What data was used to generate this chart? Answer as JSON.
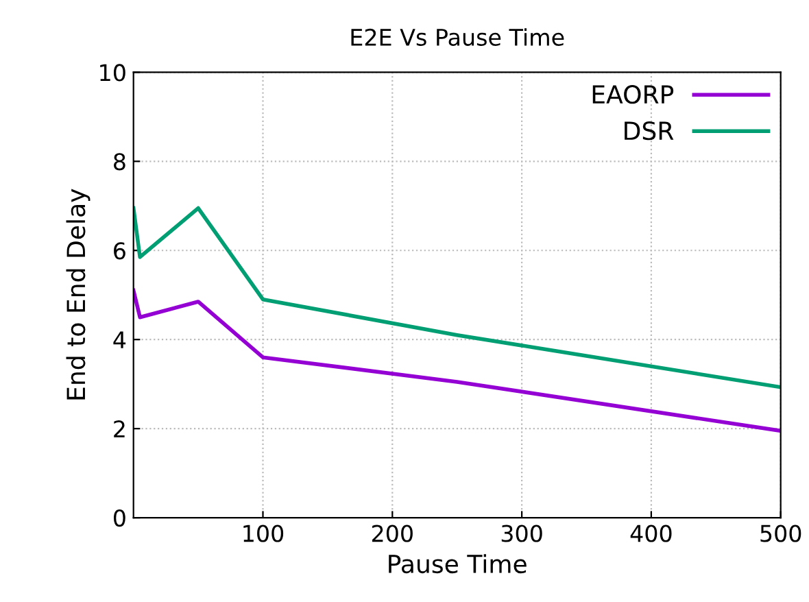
{
  "chart_data": {
    "type": "line",
    "title": "E2E Vs Pause Time",
    "xlabel": "Pause Time",
    "ylabel": "End to End Delay",
    "x": [
      0,
      5,
      50,
      100,
      250,
      500
    ],
    "series": [
      {
        "name": "EAORP",
        "color": "#9400d3",
        "values": [
          5.1,
          4.5,
          4.85,
          3.6,
          3.05,
          1.95
        ]
      },
      {
        "name": "DSR",
        "color": "#009e73",
        "values": [
          6.95,
          5.85,
          6.95,
          4.9,
          4.1,
          2.93
        ]
      }
    ],
    "xlim": [
      0,
      500
    ],
    "xticks": [
      100,
      200,
      300,
      400,
      500
    ],
    "ylim": [
      0,
      10
    ],
    "yticks": [
      0,
      2,
      4,
      6,
      8,
      10
    ],
    "grid": true,
    "legend": "top right",
    "marker": "none",
    "line_style": "solid"
  }
}
